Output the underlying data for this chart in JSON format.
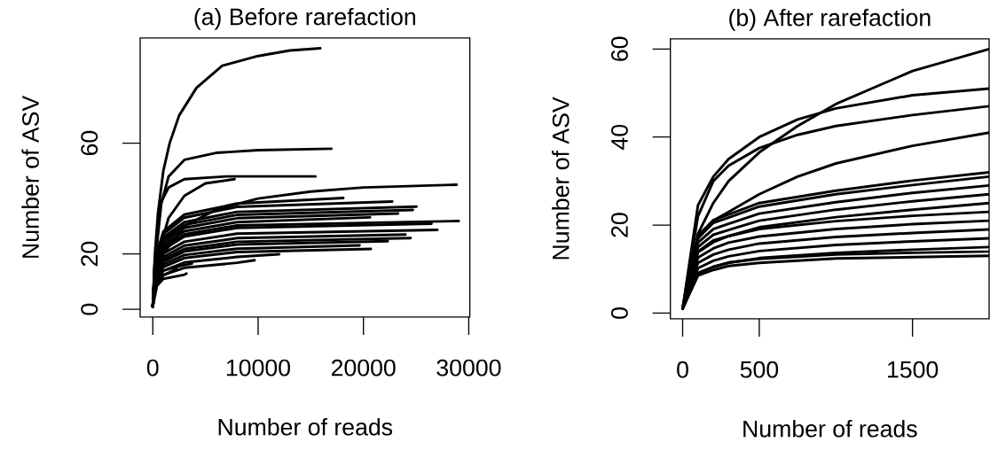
{
  "chart_data": [
    {
      "type": "line",
      "title": "(a) Before rarefaction",
      "xlabel": "Number of reads",
      "ylabel": "Number of ASV",
      "marker": "none",
      "line_style": "solid",
      "xlim": [
        -1200,
        30100
      ],
      "ylim": [
        -2.8,
        98
      ],
      "xticks": [
        0,
        10000,
        20000,
        30000
      ],
      "yticks": [
        0,
        20,
        60
      ],
      "series": [
        {
          "color": "#000000",
          "x": [
            0,
            200,
            500,
            1000,
            1600,
            2500,
            4150,
            6600,
            10000,
            13000,
            15900
          ],
          "values": [
            1,
            20,
            35,
            50,
            60,
            70,
            80,
            88,
            91.5,
            93.5,
            94.3
          ]
        },
        {
          "color": "#000000",
          "x": [
            0,
            300,
            800,
            1500,
            3000,
            6000,
            10000,
            16950
          ],
          "values": [
            1,
            20,
            38,
            48,
            54,
            56.5,
            57.5,
            58
          ]
        },
        {
          "color": "#000000",
          "x": [
            0,
            300,
            700,
            1500,
            3000,
            7000,
            15450
          ],
          "values": [
            1,
            20,
            38,
            44,
            47,
            48,
            48
          ]
        },
        {
          "color": "#000000",
          "x": [
            0,
            500,
            1500,
            3000,
            5000,
            7760
          ],
          "values": [
            1,
            20,
            33,
            41,
            45.5,
            47
          ]
        },
        {
          "color": "#000000",
          "x": [
            0,
            1000,
            3000,
            6000,
            10000,
            15000,
            20000,
            28850
          ],
          "values": [
            1,
            20,
            30,
            36,
            40,
            42.5,
            44,
            45
          ]
        },
        {
          "color": "#000000",
          "x": [
            0,
            200,
            1000,
            3000,
            8000,
            18090
          ],
          "values": [
            1,
            18.1,
            28.1,
            34.2,
            38.2,
            40.2
          ]
        },
        {
          "color": "#000000",
          "x": [
            0,
            200,
            1000,
            3000,
            8000,
            22730
          ],
          "values": [
            1,
            17.5,
            27.2,
            33.1,
            37,
            38.9
          ]
        },
        {
          "color": "#000000",
          "x": [
            0,
            200,
            1000,
            3000,
            8000,
            25030
          ],
          "values": [
            1,
            16.7,
            26,
            31.5,
            35.2,
            37.1
          ]
        },
        {
          "color": "#000000",
          "x": [
            0,
            200,
            1000,
            3000,
            8000,
            24690
          ],
          "values": [
            1,
            16.2,
            25.1,
            30.5,
            34.1,
            35.9
          ]
        },
        {
          "color": "#000000",
          "x": [
            0,
            200,
            1000,
            3000,
            8000,
            23290
          ],
          "values": [
            1,
            15.6,
            24.2,
            29.4,
            32.9,
            34.6
          ]
        },
        {
          "color": "#000000",
          "x": [
            0,
            200,
            1000,
            3000,
            8000,
            20620
          ],
          "values": [
            1,
            14.9,
            23.2,
            28.2,
            31.5,
            33.2
          ]
        },
        {
          "color": "#000000",
          "x": [
            0,
            200,
            1000,
            3000,
            8000,
            29050
          ],
          "values": [
            1,
            14.4,
            22.3,
            27.1,
            30.3,
            31.9
          ]
        },
        {
          "color": "#000000",
          "x": [
            0,
            200,
            1000,
            3000,
            8000,
            26460
          ],
          "values": [
            1,
            13.9,
            21.6,
            26.3,
            29.4,
            30.9
          ]
        },
        {
          "color": "#000000",
          "x": [
            0,
            200,
            1000,
            3000,
            8000,
            27020
          ],
          "values": [
            1,
            12.9,
            20.1,
            24.4,
            27.3,
            28.7
          ]
        },
        {
          "color": "#000000",
          "x": [
            0,
            200,
            1000,
            3000,
            8000,
            23990
          ],
          "values": [
            1,
            12.2,
            18.9,
            23,
            25.7,
            27
          ]
        },
        {
          "color": "#000000",
          "x": [
            0,
            200,
            1000,
            3000,
            8000,
            24470
          ],
          "values": [
            1,
            11.6,
            18,
            21.8,
            24.4,
            25.7
          ]
        },
        {
          "color": "#000000",
          "x": [
            0,
            200,
            1000,
            3000,
            8000,
            22310
          ],
          "values": [
            1,
            11.1,
            17.2,
            20.9,
            23.4,
            24.6
          ]
        },
        {
          "color": "#000000",
          "x": [
            0,
            200,
            1000,
            3000,
            8000,
            19630
          ],
          "values": [
            1,
            10.4,
            16.2,
            19.6,
            21.9,
            23.1
          ]
        },
        {
          "color": "#000000",
          "x": [
            0,
            200,
            1000,
            3000,
            8000,
            20700
          ],
          "values": [
            1,
            9.8,
            15.3,
            18.5,
            20.7,
            21.8
          ]
        },
        {
          "color": "#000000",
          "x": [
            0,
            200,
            1000,
            3000,
            8000,
            12000
          ],
          "values": [
            1,
            9,
            13.9,
            16.9,
            18.9,
            19.9
          ]
        },
        {
          "color": "#000000",
          "x": [
            0,
            200,
            1000,
            3000,
            8000,
            9660
          ],
          "values": [
            1,
            8,
            12.4,
            15,
            16.8,
            17.7
          ]
        },
        {
          "color": "#000000",
          "x": [
            0,
            200,
            1000,
            3000,
            3710
          ],
          "values": [
            1,
            9.9,
            14,
            16,
            16.5
          ]
        },
        {
          "color": "#000000",
          "x": [
            0,
            200,
            1000,
            3000,
            3200
          ],
          "values": [
            1,
            7.7,
            11,
            12.5,
            12.9
          ]
        },
        {
          "color": "#000000",
          "x": [
            0,
            200,
            1000,
            2220
          ],
          "values": [
            1,
            8.7,
            12.3,
            14.5
          ]
        }
      ]
    },
    {
      "type": "line",
      "title": "(b) After rarefaction",
      "xlabel": "Number of reads",
      "ylabel": "Number of ASV",
      "marker": "none",
      "line_style": "solid",
      "xlim": [
        -80,
        2000
      ],
      "ylim": [
        -1.3,
        62.3
      ],
      "xticks": [
        0,
        500,
        1500
      ],
      "yticks": [
        0,
        20,
        40,
        60
      ],
      "series": [
        {
          "color": "#000000",
          "x": [
            0,
            100,
            200,
            300,
            500,
            750,
            1000,
            1500,
            2000
          ],
          "values": [
            1,
            18,
            25,
            30,
            36.5,
            42.5,
            47.5,
            55,
            60
          ]
        },
        {
          "color": "#000000",
          "x": [
            0,
            100,
            200,
            300,
            500,
            750,
            1000,
            1500,
            2000
          ],
          "values": [
            1,
            24.5,
            31,
            35,
            40,
            44,
            46.5,
            49.5,
            51
          ]
        },
        {
          "color": "#000000",
          "x": [
            0,
            100,
            200,
            300,
            500,
            750,
            1000,
            1500,
            2000
          ],
          "values": [
            1,
            22,
            30,
            33.5,
            37.5,
            40.5,
            42.5,
            45,
            47
          ]
        },
        {
          "color": "#000000",
          "x": [
            0,
            100,
            200,
            300,
            500,
            750,
            1000,
            1500,
            2000
          ],
          "values": [
            1,
            17,
            21,
            23,
            27,
            31,
            34,
            38,
            41
          ]
        },
        {
          "color": "#000000",
          "x": [
            0,
            100,
            200,
            300,
            500,
            1000,
            1500,
            2000
          ],
          "values": [
            1,
            8.5,
            9.8,
            10.7,
            11.4,
            12.4,
            12.7,
            13
          ]
        },
        {
          "color": "#000000",
          "x": [
            0,
            100,
            200,
            300,
            500,
            1000,
            1500,
            2000
          ],
          "values": [
            1,
            9.1,
            10.5,
            11.5,
            12.3,
            13.3,
            13.7,
            14
          ]
        },
        {
          "color": "#000000",
          "x": [
            0,
            100,
            200,
            300,
            500,
            1000,
            1500,
            2000
          ],
          "values": [
            1,
            9,
            10.5,
            11.4,
            12.5,
            13.7,
            14.4,
            15
          ]
        },
        {
          "color": "#000000",
          "x": [
            0,
            100,
            200,
            300,
            500,
            1000,
            1500,
            2000
          ],
          "values": [
            1,
            10.2,
            11.9,
            12.9,
            14.1,
            15.5,
            16.3,
            17
          ]
        },
        {
          "color": "#000000",
          "x": [
            0,
            100,
            200,
            300,
            500,
            1000,
            1500,
            2000
          ],
          "values": [
            1,
            11.4,
            13.3,
            14.4,
            15.8,
            17.3,
            18.2,
            19
          ]
        },
        {
          "color": "#000000",
          "x": [
            0,
            100,
            200,
            300,
            500,
            1000,
            1500,
            2000
          ],
          "values": [
            1,
            12.6,
            14.7,
            16,
            17.4,
            19.1,
            20.2,
            21
          ]
        },
        {
          "color": "#000000",
          "x": [
            0,
            100,
            200,
            300,
            500,
            1000,
            1500,
            2000
          ],
          "values": [
            1,
            13.8,
            16.1,
            17.5,
            19.1,
            20.9,
            22.1,
            23
          ]
        },
        {
          "color": "#000000",
          "x": [
            0,
            100,
            200,
            300,
            500,
            1000,
            1500,
            2000
          ],
          "values": [
            1,
            14,
            16.5,
            17.5,
            19.5,
            21.8,
            23.5,
            25
          ]
        },
        {
          "color": "#000000",
          "x": [
            0,
            100,
            200,
            300,
            500,
            1000,
            1500,
            2000
          ],
          "values": [
            1,
            15,
            17.8,
            18.9,
            21,
            23.5,
            25.4,
            27
          ]
        },
        {
          "color": "#000000",
          "x": [
            0,
            100,
            200,
            300,
            500,
            1000,
            1500,
            2000
          ],
          "values": [
            1,
            16,
            19.1,
            20.3,
            22.6,
            25.2,
            27.3,
            29
          ]
        },
        {
          "color": "#000000",
          "x": [
            0,
            100,
            200,
            300,
            500,
            1000,
            1500,
            2000
          ],
          "values": [
            1,
            17,
            20.5,
            21.7,
            24.2,
            27,
            29.1,
            31
          ]
        },
        {
          "color": "#000000",
          "x": [
            0,
            100,
            200,
            300,
            500,
            1000,
            1500,
            2000
          ],
          "values": [
            1,
            17.6,
            21.1,
            22.4,
            25,
            27.8,
            30.1,
            32
          ]
        }
      ]
    }
  ]
}
